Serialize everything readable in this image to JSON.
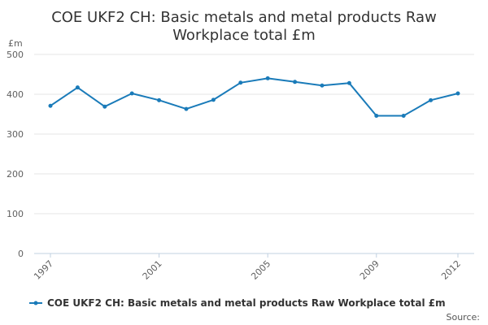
{
  "colors": {
    "series": "#1a7bb9",
    "grid": "#e6e6e6",
    "axis": "#c0d0e0"
  },
  "chart_data": {
    "type": "line",
    "title": "COE UKF2 CH: Basic metals and metal products Raw Workplace total £m",
    "title_lines": [
      "COE UKF2 CH: Basic metals and metal products Raw",
      "Workplace total £m"
    ],
    "ylabel": "£m",
    "xlabel": "",
    "ylim": [
      0,
      500
    ],
    "yticks": [
      0,
      100,
      200,
      300,
      400,
      500
    ],
    "xticks": [
      "1997",
      "2001",
      "2005",
      "2009",
      "2012"
    ],
    "x": [
      1997,
      1998,
      1999,
      2000,
      2001,
      2002,
      2003,
      2004,
      2005,
      2006,
      2007,
      2008,
      2009,
      2010,
      2011,
      2012
    ],
    "grid": true,
    "legend_position": "bottom",
    "series": [
      {
        "name": "COE UKF2 CH: Basic metals and metal products Raw Workplace total £m",
        "values": [
          371,
          417,
          369,
          402,
          385,
          363,
          386,
          429,
          440,
          431,
          422,
          428,
          346,
          346,
          385,
          402
        ]
      }
    ]
  },
  "source_label": "Source:"
}
